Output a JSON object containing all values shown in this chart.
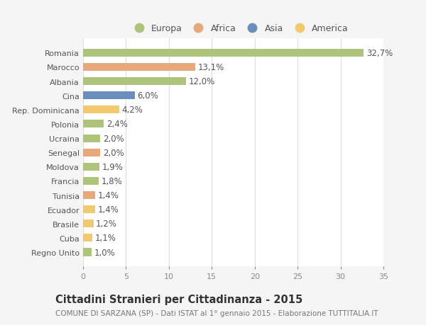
{
  "countries": [
    "Romania",
    "Marocco",
    "Albania",
    "Cina",
    "Rep. Dominicana",
    "Polonia",
    "Ucraina",
    "Senegal",
    "Moldova",
    "Francia",
    "Tunisia",
    "Ecuador",
    "Brasile",
    "Cuba",
    "Regno Unito"
  ],
  "values": [
    32.7,
    13.1,
    12.0,
    6.0,
    4.2,
    2.4,
    2.0,
    2.0,
    1.9,
    1.8,
    1.4,
    1.4,
    1.2,
    1.1,
    1.0
  ],
  "labels": [
    "32,7%",
    "13,1%",
    "12,0%",
    "6,0%",
    "4,2%",
    "2,4%",
    "2,0%",
    "2,0%",
    "1,9%",
    "1,8%",
    "1,4%",
    "1,4%",
    "1,2%",
    "1,1%",
    "1,0%"
  ],
  "colors": [
    "#adc47a",
    "#e8a87c",
    "#adc47a",
    "#6a8fbf",
    "#f2c96e",
    "#adc47a",
    "#adc47a",
    "#e8a87c",
    "#adc47a",
    "#adc47a",
    "#e8a87c",
    "#f2c96e",
    "#f2c96e",
    "#f2c96e",
    "#adc47a"
  ],
  "legend_labels": [
    "Europa",
    "Africa",
    "Asia",
    "America"
  ],
  "legend_colors": [
    "#adc47a",
    "#e8a87c",
    "#6a8fbf",
    "#f2c96e"
  ],
  "title": "Cittadini Stranieri per Cittadinanza - 2015",
  "subtitle": "COMUNE DI SARZANA (SP) - Dati ISTAT al 1° gennaio 2015 - Elaborazione TUTTITALIA.IT",
  "xlim": [
    0,
    35
  ],
  "xticks": [
    0,
    5,
    10,
    15,
    20,
    25,
    30,
    35
  ],
  "fig_bg_color": "#f5f5f5",
  "plot_bg_color": "#ffffff",
  "grid_color": "#dddddd",
  "bar_height": 0.55,
  "label_fontsize": 8.5,
  "title_fontsize": 10.5,
  "subtitle_fontsize": 7.5,
  "tick_fontsize": 8,
  "legend_fontsize": 9
}
